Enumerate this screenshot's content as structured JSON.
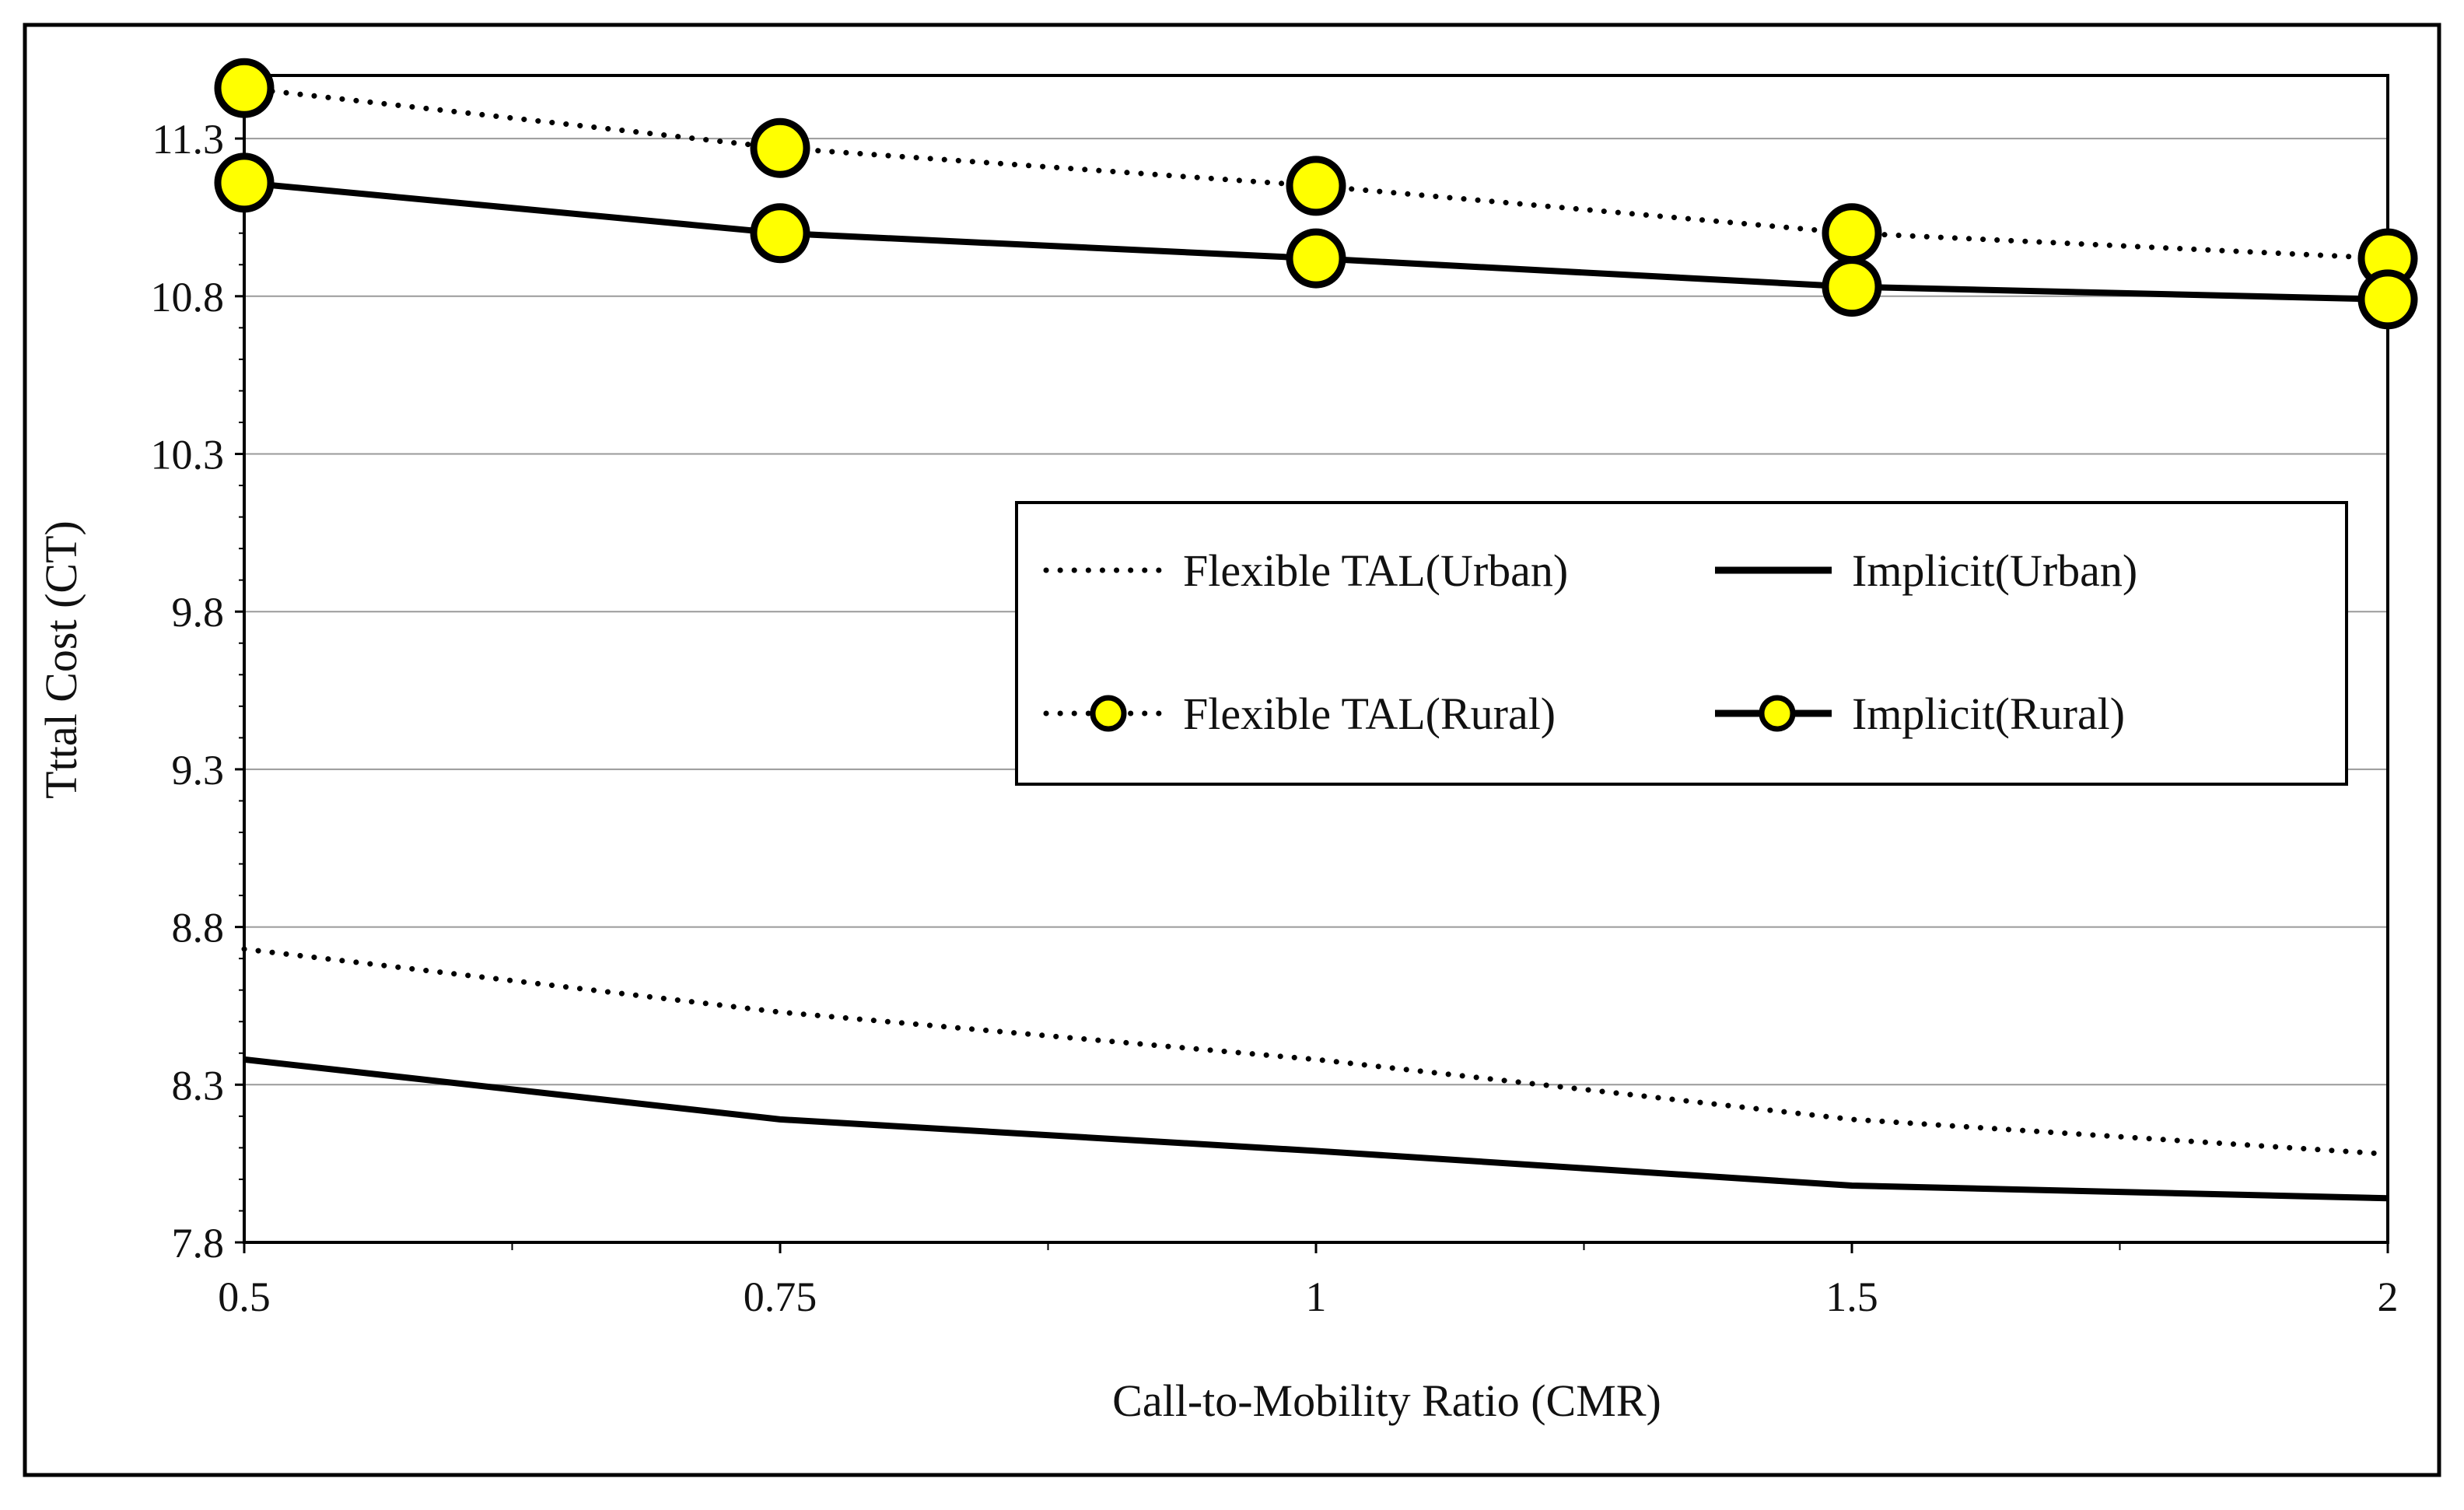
{
  "chart_data": {
    "type": "line",
    "title": "",
    "xlabel": "Call-to-Mobility  Ratio (CMR)",
    "ylabel": "Tttal Cost (CT)",
    "categories": [
      "0.5",
      "0.75",
      "1",
      "1.5",
      "2"
    ],
    "yticks": [
      "7.8",
      "8.3",
      "8.8",
      "9.3",
      "9.8",
      "10.3",
      "10.8",
      "11.3"
    ],
    "ylim": [
      7.8,
      11.5
    ],
    "grid": "horizontal",
    "legend_position": "center-right",
    "series": [
      {
        "name": "Flexible TAL(Urban)",
        "style": "dotted",
        "marker": false,
        "values": [
          8.73,
          8.53,
          8.38,
          8.19,
          8.08
        ]
      },
      {
        "name": "Implicit(Urban)",
        "style": "solid",
        "marker": false,
        "values": [
          8.38,
          8.19,
          8.09,
          7.98,
          7.94
        ]
      },
      {
        "name": "Flexible TAL(Rural)",
        "style": "dotted",
        "marker": true,
        "values": [
          11.46,
          11.27,
          11.15,
          11.0,
          10.92
        ]
      },
      {
        "name": "Implicit(Rural)",
        "style": "solid",
        "marker": true,
        "values": [
          11.16,
          11.0,
          10.92,
          10.83,
          10.79
        ]
      }
    ]
  },
  "colors": {
    "line": "#000000",
    "marker_fill": "#ffff00",
    "grid": "#9a9a9a",
    "background": "#ffffff"
  }
}
